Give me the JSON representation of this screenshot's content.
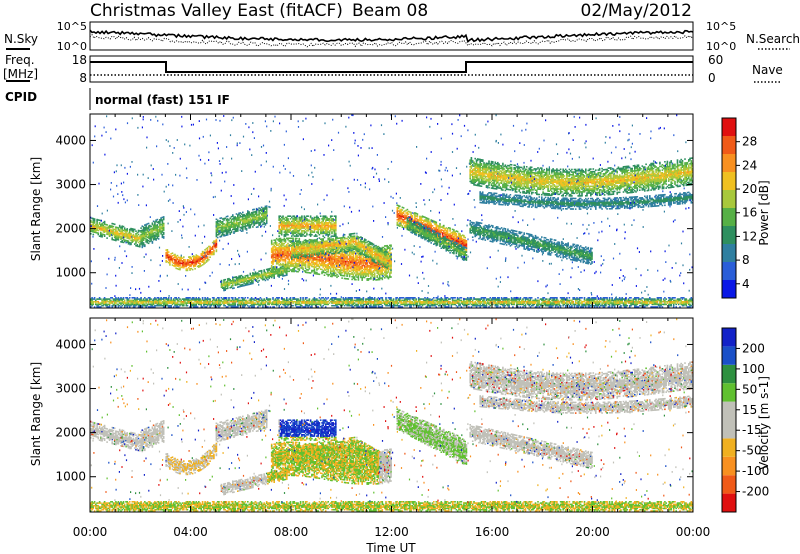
{
  "header": {
    "title": "Christmas Valley East (fitACF)",
    "beam": "Beam 08",
    "date": "02/May/2012"
  },
  "top_panel": {
    "left_label": "N.Sky",
    "right_label": "N.Search",
    "left_ticks": [
      "10^5",
      "10^0"
    ],
    "right_ticks": [
      "10^5",
      "10^0"
    ]
  },
  "freq_panel": {
    "left_label_1": "Freq.",
    "left_label_2": "[MHz]",
    "right_label": "Nave",
    "left_ticks": [
      "18",
      "8"
    ],
    "right_ticks": [
      "60",
      "0"
    ]
  },
  "cpid": {
    "label": "CPID",
    "text": "normal (fast) 151 IF"
  },
  "colors": {
    "power": [
      "#0a18e6",
      "#2a5ed8",
      "#2f7fa0",
      "#2e8f5f",
      "#56b046",
      "#a8c83c",
      "#f0c020",
      "#f89020",
      "#f05a18",
      "#e01010"
    ],
    "velocity": [
      "#e01010",
      "#f05a18",
      "#f89020",
      "#f0b020",
      "#c0c0b8",
      "#c0c0b8",
      "#60c030",
      "#2e9040",
      "#1a50c8",
      "#1222c8"
    ]
  },
  "chart_data": [
    {
      "type": "heatmap",
      "name": "Power",
      "xlabel": "",
      "ylabel": "Slant Range [km]",
      "xlim": [
        0,
        24
      ],
      "ylim": [
        200,
        4600
      ],
      "yticks": [
        1000,
        2000,
        3000,
        4000
      ],
      "colorbar_label": "Power [dB]",
      "colorbar_ticks": [
        "28",
        "24",
        "20",
        "16",
        "12",
        "8",
        "4"
      ],
      "clim": [
        0,
        30
      ]
    },
    {
      "type": "heatmap",
      "name": "Velocity",
      "xlabel": "Time UT",
      "ylabel": "Slant Range [km]",
      "xlim": [
        0,
        24
      ],
      "ylim": [
        200,
        4600
      ],
      "xticks": [
        "00:00",
        "04:00",
        "08:00",
        "12:00",
        "16:00",
        "20:00",
        "00:00"
      ],
      "yticks": [
        1000,
        2000,
        3000,
        4000
      ],
      "colorbar_label": "Velocity [m s-1]",
      "colorbar_ticks": [
        "200",
        "100",
        "50",
        "15",
        "-15",
        "-50",
        "-100",
        "-200"
      ],
      "clim": [
        -250,
        250
      ]
    }
  ]
}
